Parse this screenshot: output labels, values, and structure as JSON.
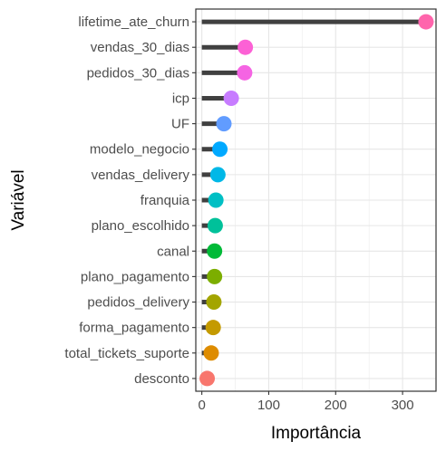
{
  "chart_data": {
    "type": "lollipop",
    "orientation": "horizontal",
    "xlabel": "Importância",
    "ylabel": "Variável",
    "xlim": [
      -9,
      350
    ],
    "xticks": [
      0,
      100,
      200,
      300
    ],
    "grid": true,
    "legend": "none",
    "stem_color": "#404040",
    "categories": [
      "lifetime_ate_churn",
      "vendas_30_dias",
      "pedidos_30_dias",
      "icp",
      "UF",
      "modelo_negocio",
      "vendas_delivery",
      "franquia",
      "plano_escolhido",
      "canal",
      "plano_pagamento",
      "pedidos_delivery",
      "forma_pagamento",
      "total_tickets_suporte",
      "desconto"
    ],
    "values": [
      335,
      65,
      64,
      44,
      33,
      27,
      24,
      21,
      20,
      19,
      19,
      18,
      17,
      14,
      8
    ],
    "colors": [
      "#FF65AC",
      "#FC61D5",
      "#F564E3",
      "#C77CFF",
      "#619CFF",
      "#00A9FF",
      "#00B8E7",
      "#00BFC4",
      "#00C19A",
      "#00BA38",
      "#7CAE00",
      "#A3A500",
      "#C49A00",
      "#DE8C00",
      "#F8766D"
    ]
  }
}
